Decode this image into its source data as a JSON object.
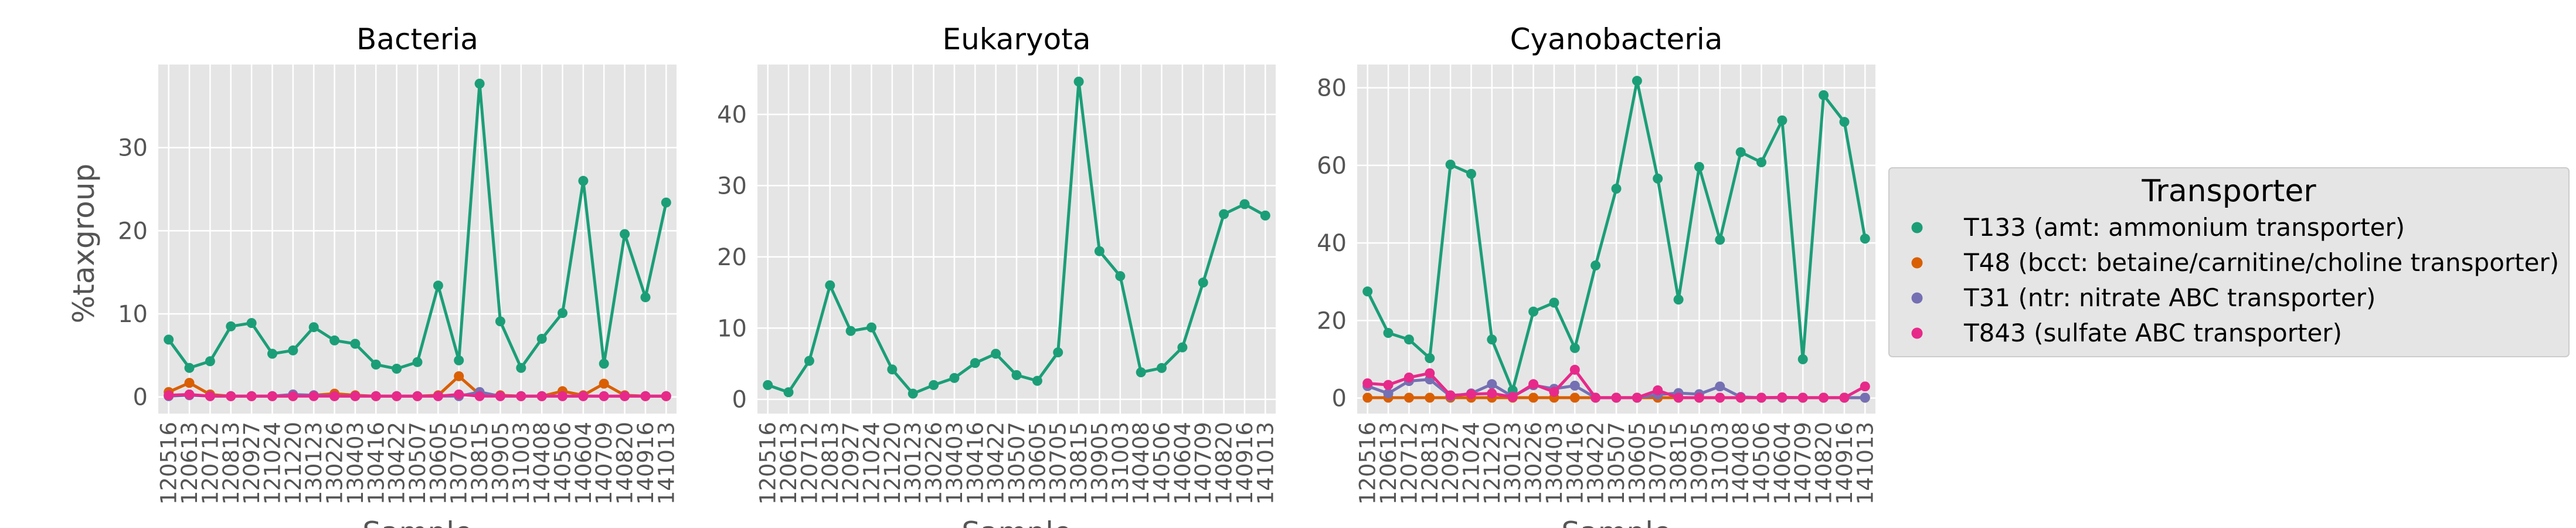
{
  "chart_data": [
    {
      "type": "line",
      "title": "Bacteria",
      "ylabel": "%taxgroup",
      "xlabel": "Sample",
      "ylim": [
        -2,
        40
      ],
      "yticks": [
        0,
        10,
        20,
        30
      ],
      "grid": true,
      "series": [
        {
          "name": "T133 (amt: ammonium transporter)",
          "color": "#1b9e77",
          "values": [
            6.9,
            3.5,
            4.3,
            8.5,
            8.9,
            5.2,
            5.6,
            8.4,
            6.8,
            6.4,
            3.9,
            3.4,
            4.2,
            13.4,
            4.4,
            37.7,
            9.1,
            3.5,
            7.0,
            10.1,
            26.0,
            4.0,
            19.6,
            12.0,
            23.4
          ]
        },
        {
          "name": "T48 (bcct: betaine/carnitine/choline transporter)",
          "color": "#d95f02",
          "values": [
            0.6,
            1.7,
            0.3,
            0.1,
            0.1,
            0.1,
            0.1,
            0.2,
            0.4,
            0.2,
            0.1,
            0.1,
            0.1,
            0.2,
            2.5,
            0.3,
            0.2,
            0.1,
            0.1,
            0.7,
            0.2,
            1.6,
            0.2,
            0.1,
            0.1
          ]
        },
        {
          "name": "T31 (ntr: nitrate ABC transporter)",
          "color": "#7570b3",
          "values": [
            0.1,
            0.2,
            0.1,
            0.1,
            0.1,
            0.1,
            0.3,
            0.2,
            0.1,
            0.1,
            0.1,
            0.1,
            0.1,
            0.1,
            0.1,
            0.6,
            0.1,
            0.1,
            0.1,
            0.1,
            0.1,
            0.1,
            0.1,
            0.1,
            0.1
          ]
        },
        {
          "name": "T843 (sulfate ABC transporter)",
          "color": "#e7298a",
          "values": [
            0.2,
            0.3,
            0.1,
            0.1,
            0.1,
            0.1,
            0.1,
            0.1,
            0.1,
            0.1,
            0.1,
            0.1,
            0.1,
            0.1,
            0.3,
            0.1,
            0.1,
            0.1,
            0.1,
            0.1,
            0.1,
            0.1,
            0.1,
            0.1,
            0.1
          ]
        }
      ]
    },
    {
      "type": "line",
      "title": "Eukaryota",
      "ylabel": "",
      "xlabel": "Sample",
      "ylim": [
        -2,
        47
      ],
      "yticks": [
        0,
        10,
        20,
        30,
        40
      ],
      "grid": true,
      "series": [
        {
          "name": "T133 (amt: ammonium transporter)",
          "color": "#1b9e77",
          "values": [
            2.0,
            1.0,
            5.4,
            16.0,
            9.6,
            10.1,
            4.2,
            0.8,
            2.0,
            3.0,
            5.1,
            6.4,
            3.4,
            2.6,
            6.6,
            44.6,
            20.8,
            17.3,
            3.8,
            4.4,
            7.3,
            16.4,
            26.0,
            27.4,
            25.8
          ]
        }
      ]
    },
    {
      "type": "line",
      "title": "Cyanobacteria",
      "ylabel": "",
      "xlabel": "Sample",
      "ylim": [
        -4,
        86
      ],
      "yticks": [
        0,
        20,
        40,
        60,
        80
      ],
      "grid": true,
      "series": [
        {
          "name": "T133 (amt: ammonium transporter)",
          "color": "#1b9e77",
          "values": [
            27.5,
            16.8,
            15.1,
            10.3,
            60.2,
            57.8,
            15.1,
            2.0,
            22.3,
            24.6,
            12.9,
            34.2,
            54.0,
            81.8,
            56.6,
            25.4,
            59.6,
            40.8,
            63.4,
            60.8,
            71.6,
            10.0,
            78.1,
            71.2,
            41.1
          ]
        },
        {
          "name": "T48 (bcct: betaine/carnitine/choline transporter)",
          "color": "#d95f02",
          "values": [
            0.1,
            0.1,
            0.1,
            0.1,
            0.1,
            0.1,
            0.1,
            0.1,
            0.1,
            0.1,
            0.1,
            0.1,
            0.1,
            0.1,
            0.1,
            0.1,
            0.1,
            0.1,
            0.1,
            0.1,
            0.1,
            0.1,
            0.1,
            0.1,
            0.1
          ]
        },
        {
          "name": "T31 (ntr: nitrate ABC transporter)",
          "color": "#7570b3",
          "values": [
            3.1,
            1.2,
            4.4,
            4.8,
            0.5,
            1.2,
            3.6,
            0.4,
            3.3,
            2.4,
            3.2,
            0.1,
            0.1,
            0.1,
            0.9,
            1.3,
            1.0,
            3.0,
            0.3,
            0.1,
            0.1,
            0.1,
            0.1,
            0.1,
            0.1
          ]
        },
        {
          "name": "T843 (sulfate ABC transporter)",
          "color": "#e7298a",
          "values": [
            3.8,
            3.4,
            5.3,
            6.4,
            0.7,
            1.0,
            1.2,
            0.3,
            3.6,
            1.6,
            7.3,
            0.1,
            0.1,
            0.1,
            2.0,
            0.1,
            0.1,
            0.1,
            0.1,
            0.1,
            0.2,
            0.1,
            0.1,
            0.1,
            3.0
          ]
        }
      ]
    }
  ],
  "categories": [
    "120516",
    "120613",
    "120712",
    "120813",
    "120927",
    "121024",
    "121220",
    "130123",
    "130226",
    "130403",
    "130416",
    "130422",
    "130507",
    "130605",
    "130705",
    "130815",
    "130905",
    "131003",
    "140408",
    "140506",
    "140604",
    "140709",
    "140820",
    "140916",
    "141013"
  ],
  "legend": {
    "title": "Transporter",
    "placement": "right",
    "entries": [
      {
        "label": "T133 (amt: ammonium transporter)",
        "color": "#1b9e77"
      },
      {
        "label": "T48 (bcct: betaine/carnitine/choline transporter)",
        "color": "#d95f02"
      },
      {
        "label": "T31 (ntr: nitrate ABC transporter)",
        "color": "#7570b3"
      },
      {
        "label": "T843 (sulfate ABC transporter)",
        "color": "#e7298a"
      }
    ]
  },
  "style": {
    "panel_background": "#e5e5e5",
    "grid_color": "#ffffff",
    "tick_color": "#555555"
  }
}
